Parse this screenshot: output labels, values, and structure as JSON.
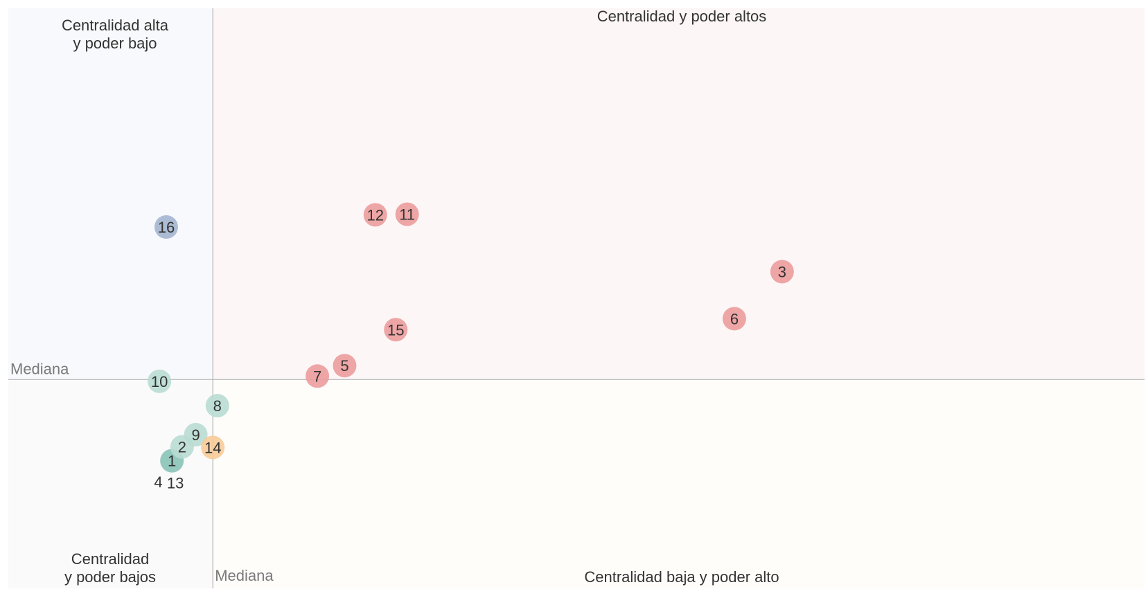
{
  "chart_data": {
    "type": "scatter",
    "title": "",
    "xlabel": "",
    "ylabel": "",
    "x_range": [
      0,
      100
    ],
    "y_range": [
      0,
      100
    ],
    "grid": false,
    "median": {
      "x": 18,
      "y": 36,
      "x_label": "Mediana",
      "y_label": "Mediana"
    },
    "quadrants": {
      "top_left": {
        "lines": [
          "Centralidad alta",
          "y poder bajo"
        ],
        "color": "#f8f9fc"
      },
      "top_right": {
        "lines": [
          "Centralidad y poder altos"
        ],
        "color": "#fdf6f6"
      },
      "bottom_left": {
        "lines": [
          "Centralidad",
          "y poder bajos"
        ],
        "color": "#fafafa"
      },
      "bottom_right": {
        "lines": [
          "Centralidad baja y poder alto"
        ],
        "color": "#fefdfa"
      }
    },
    "colors": {
      "red": "#ec9c9c",
      "blue": "#a3b5cf",
      "teal_light": "#b9dcd3",
      "teal_dark": "#88c3b7",
      "orange": "#f7cb98"
    },
    "points": [
      {
        "label": "1",
        "x": 14.4,
        "y": 22.0,
        "color": "teal_dark"
      },
      {
        "label": "2",
        "x": 15.3,
        "y": 24.4,
        "color": "teal_light"
      },
      {
        "label": "3",
        "x": 68.1,
        "y": 54.6,
        "color": "red"
      },
      {
        "label": "4",
        "x": 13.2,
        "y": 18.4,
        "color": "none"
      },
      {
        "label": "5",
        "x": 29.6,
        "y": 38.4,
        "color": "red"
      },
      {
        "label": "6",
        "x": 63.9,
        "y": 46.5,
        "color": "red"
      },
      {
        "label": "7",
        "x": 27.2,
        "y": 36.6,
        "color": "red"
      },
      {
        "label": "8",
        "x": 18.4,
        "y": 31.5,
        "color": "teal_light"
      },
      {
        "label": "9",
        "x": 16.5,
        "y": 26.5,
        "color": "teal_light"
      },
      {
        "label": "10",
        "x": 13.3,
        "y": 35.7,
        "color": "teal_light"
      },
      {
        "label": "11",
        "x": 35.1,
        "y": 64.5,
        "color": "red"
      },
      {
        "label": "12",
        "x": 32.3,
        "y": 64.4,
        "color": "red"
      },
      {
        "label": "13",
        "x": 14.7,
        "y": 18.2,
        "color": "none"
      },
      {
        "label": "14",
        "x": 18.0,
        "y": 24.3,
        "color": "orange"
      },
      {
        "label": "15",
        "x": 34.1,
        "y": 44.6,
        "color": "red"
      },
      {
        "label": "16",
        "x": 13.9,
        "y": 62.3,
        "color": "blue"
      }
    ]
  }
}
